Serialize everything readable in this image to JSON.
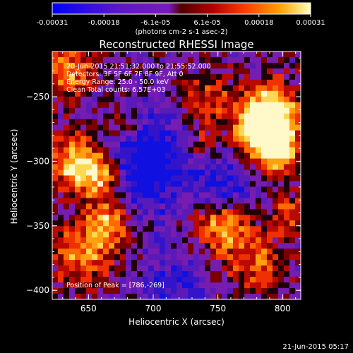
{
  "colorbar": {
    "ticks": [
      "-0.00031",
      "-0.00018",
      "-6.1e-05",
      "6.1e-05",
      "0.00018",
      "0.00031"
    ],
    "unit_label": "(photons cm-2 s-1 asec-2)",
    "colormap": [
      "#0000ff",
      "#4010c8",
      "#7a1ab8",
      "#600000",
      "#c01000",
      "#ff5000",
      "#ffa000",
      "#ffe870",
      "#ffffff"
    ]
  },
  "title": "Reconstructed RHESSI Image",
  "info": {
    "line1": "20-Jun-2015 21:51:32.000 to 21:55:52.000",
    "line2": "Detectors: 3F 5F 6F 7F 8F 9F, Att 0",
    "line3": "Energy Range: 25.0 - 50.0 keV",
    "line4": "Clean    Total counts: 6.57E+03"
  },
  "peak_label": "Position of Peak = [786,-269]",
  "axes": {
    "xlabel": "Heliocentric X (arcsec)",
    "ylabel": "Heliocentric Y (arcsec)",
    "xticks": [
      650,
      700,
      750,
      800
    ],
    "yticks": [
      -250,
      -300,
      -350,
      -400
    ],
    "xlim": [
      622,
      814
    ],
    "ylim": [
      -407,
      -215
    ]
  },
  "footer": "21-Jun-2015 05:17"
}
